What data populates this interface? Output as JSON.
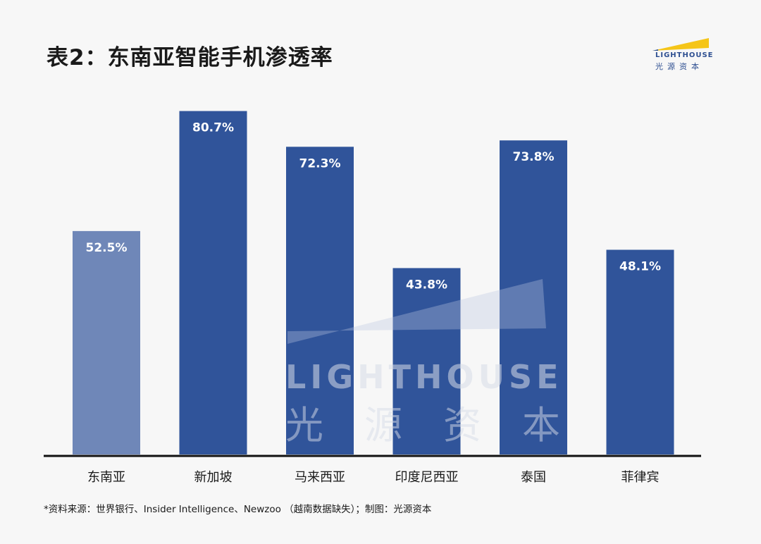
{
  "title": "表2：东南亚智能手机渗透率",
  "logo": {
    "en": "LIGHTHOUSE",
    "cn": "光源资本",
    "accent_color": "#f5c518",
    "brand_color": "#2e4f91"
  },
  "watermark": {
    "en": "LIGHTHOUSE",
    "cn": "光源资本"
  },
  "footnote": "*资料来源：世界银行、Insider Intelligence、Newzoo （越南数据缺失）；制图：光源资本",
  "chart_data": {
    "type": "bar",
    "categories": [
      "东南亚",
      "新加坡",
      "马来西亚",
      "印度尼西亚",
      "泰国",
      "菲律宾"
    ],
    "values": [
      52.5,
      80.7,
      72.3,
      43.8,
      73.8,
      48.1
    ],
    "value_labels": [
      "52.5%",
      "80.7%",
      "72.3%",
      "43.8%",
      "73.8%",
      "48.1%"
    ],
    "unit": "%",
    "ylim": [
      0,
      100
    ],
    "grid": false,
    "legend": "none",
    "colors": [
      "#6f87b8",
      "#30549a",
      "#30549a",
      "#30549a",
      "#30549a",
      "#30549a"
    ]
  }
}
